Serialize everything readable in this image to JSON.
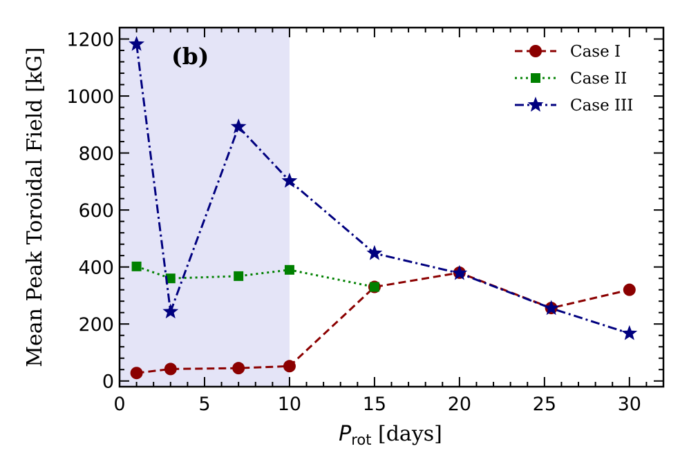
{
  "chart_data": {
    "type": "line",
    "panel_label": "(b)",
    "xlabel": "P",
    "xlabel_subscript": "rot",
    "xlabel_suffix": " [days]",
    "ylabel": "Mean Peak Toroidal Field [kG]",
    "xlim": [
      0,
      32
    ],
    "ylim": [
      -20,
      1240
    ],
    "x_ticks": [
      0,
      5,
      10,
      15,
      20,
      25,
      30
    ],
    "y_ticks": [
      0,
      200,
      400,
      600,
      800,
      1000,
      1200
    ],
    "x_tick_labels": [
      "0",
      "5",
      "10",
      "15",
      "20",
      "25",
      "30"
    ],
    "y_tick_labels": [
      "0",
      "200",
      "400",
      "600",
      "800",
      "1000",
      "1200"
    ],
    "shaded_region": {
      "x_start": 0,
      "x_end": 10,
      "color": "#e4e4f7"
    },
    "legend_position": "top-right",
    "series": [
      {
        "name": "Case I",
        "color": "#8b0000",
        "marker": "circle",
        "line_style": "dashed",
        "x": [
          1,
          3,
          7,
          10,
          15,
          20,
          25.4,
          30
        ],
        "y": [
          28,
          42,
          45,
          52,
          330,
          380,
          256,
          320
        ]
      },
      {
        "name": "Case II",
        "color": "#008000",
        "marker": "square",
        "line_style": "dotted",
        "x": [
          1,
          3,
          7,
          10,
          15
        ],
        "y": [
          402,
          360,
          368,
          390,
          330
        ]
      },
      {
        "name": "Case III",
        "color": "#00007f",
        "marker": "star",
        "line_style": "dashdot",
        "x": [
          1,
          3,
          7,
          10,
          15,
          20,
          25.4,
          30
        ],
        "y": [
          1182,
          243,
          892,
          702,
          448,
          378,
          255,
          167
        ]
      }
    ]
  }
}
